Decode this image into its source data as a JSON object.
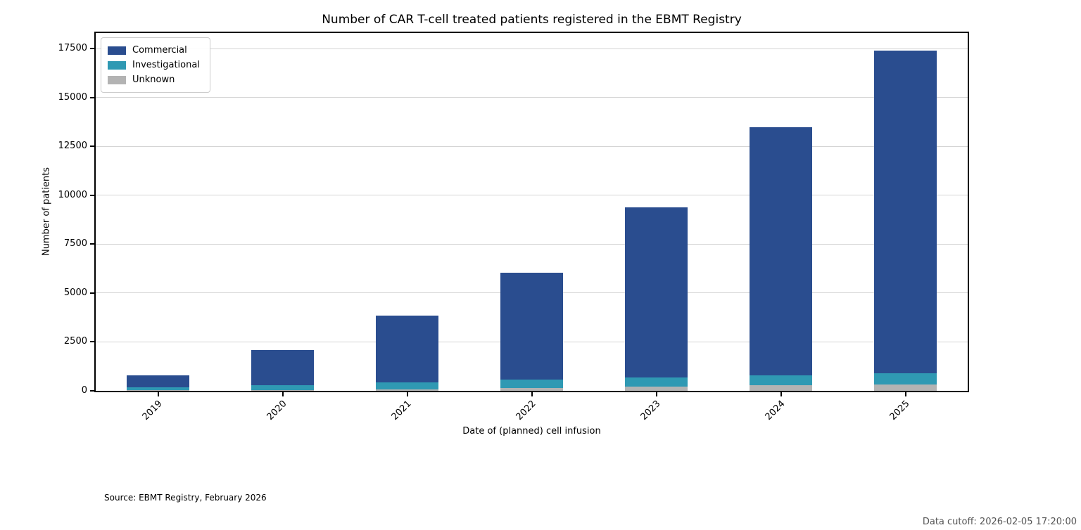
{
  "title": "Number of CAR T-cell treated patients registered in the EBMT Registry",
  "source_note": "Source: EBMT Registry, February 2026",
  "data_cutoff": "Data cutoff: 2026-02-05 17:20:00",
  "colors": {
    "commercial": "#2a4d8f",
    "investigational": "#2f99b3",
    "unknown": "#b3b3b3",
    "gridline": "#d4d4d4",
    "cutoff_text": "#555555"
  },
  "chart_data": {
    "type": "bar",
    "stacked": true,
    "title": "Number of CAR T-cell treated patients registered in the EBMT Registry",
    "xlabel": "Date of (planned) cell infusion",
    "ylabel": "Number of patients",
    "categories": [
      "2019",
      "2020",
      "2021",
      "2022",
      "2023",
      "2024",
      "2025"
    ],
    "series": [
      {
        "name": "Commercial",
        "color": "#2a4d8f",
        "values": [
          610,
          1820,
          3410,
          5475,
          8705,
          12700,
          16495
        ]
      },
      {
        "name": "Investigational",
        "color": "#2f99b3",
        "values": [
          160,
          230,
          370,
          445,
          480,
          525,
          570
        ]
      },
      {
        "name": "Unknown",
        "color": "#b3b3b3",
        "values": [
          30,
          50,
          60,
          130,
          215,
          275,
          335
        ]
      }
    ],
    "totals": [
      800,
      2100,
      3840,
      6050,
      9400,
      13500,
      17400
    ],
    "stack_order_bottom_to_top": [
      "Unknown",
      "Investigational",
      "Commercial"
    ],
    "ylim": [
      0,
      18300
    ],
    "yticks": [
      0,
      2500,
      5000,
      7500,
      10000,
      12500,
      15000,
      17500
    ],
    "grid": true,
    "legend_position": "upper left",
    "x_tick_rotation_deg": 45
  }
}
